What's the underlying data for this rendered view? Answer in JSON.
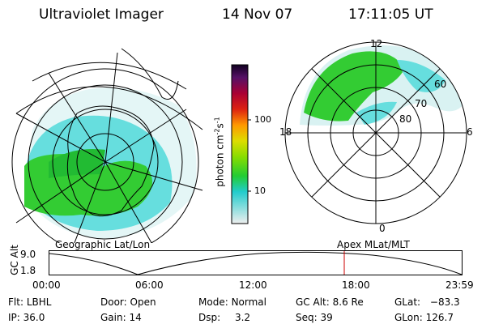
{
  "header": {
    "instrument": "Ultraviolet Imager",
    "date": "14 Nov 07",
    "time": "17:11:05 UT"
  },
  "colorbar": {
    "label": "photon cm",
    "label_exp": "-2",
    "label_s": "s",
    "label_exp2": "-1",
    "ticks": [
      "100",
      "10"
    ]
  },
  "left_map": {
    "caption": "Geographic Lat/Lon"
  },
  "right_map": {
    "caption": "Apex  MLat/MLT",
    "mlt_labels": {
      "top": "12",
      "bottom": "0",
      "left": "18",
      "right": "6"
    },
    "lat_labels": [
      "60",
      "70",
      "80"
    ]
  },
  "timeline": {
    "ylabel": "GC Alt",
    "y_ticks": [
      "9.0",
      "1.8"
    ],
    "x_ticks": [
      "00:00",
      "06:00",
      "12:00",
      "18:00",
      "23:59"
    ],
    "marker_time": "17:11"
  },
  "status": [
    {
      "label": "Flt:",
      "value": "LBHL"
    },
    {
      "label": "Door:",
      "value": "Open"
    },
    {
      "label": "Mode:",
      "value": "Normal"
    },
    {
      "label": "GC Alt:",
      "value": "8.6 Re"
    },
    {
      "label": "GLat:",
      "value": "−83.3"
    },
    {
      "label": "IP:",
      "value": "36.0"
    },
    {
      "label": "Gain:",
      "value": "14"
    },
    {
      "label": "Dsp:",
      "value": "3.2"
    },
    {
      "label": "Seq:",
      "value": "39"
    },
    {
      "label": "GLon:",
      "value": "126.7"
    }
  ],
  "colors": {
    "aurora_green": "#33cc33",
    "aurora_cyan": "#55dddd",
    "aurora_pale": "#cceeee",
    "marker_red": "#cc0000"
  }
}
